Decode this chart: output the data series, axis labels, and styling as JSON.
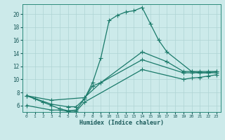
{
  "xlabel": "Humidex (Indice chaleur)",
  "bg_color": "#cceaea",
  "grid_color": "#aed4d4",
  "line_color": "#1a7a6a",
  "xlim": [
    -0.5,
    23.5
  ],
  "ylim": [
    5.0,
    21.5
  ],
  "xticks": [
    0,
    1,
    2,
    3,
    4,
    5,
    6,
    7,
    8,
    9,
    10,
    11,
    12,
    13,
    14,
    15,
    16,
    17,
    18,
    19,
    20,
    21,
    22,
    23
  ],
  "yticks": [
    6,
    8,
    10,
    12,
    14,
    16,
    18,
    20
  ],
  "main_x": [
    0,
    1,
    2,
    3,
    4,
    5,
    6,
    7,
    8,
    9,
    10,
    11,
    12,
    13,
    14,
    15,
    16,
    17,
    20,
    21,
    22,
    23
  ],
  "main_y": [
    7.5,
    7.0,
    6.5,
    6.0,
    5.5,
    5.2,
    5.3,
    7.0,
    9.5,
    13.3,
    19.0,
    19.8,
    20.3,
    20.5,
    21.0,
    18.5,
    16.0,
    14.2,
    11.2,
    11.0,
    11.0,
    11.2
  ],
  "line1_x": [
    0,
    3,
    7,
    9,
    14,
    17,
    19,
    20,
    21,
    22,
    23
  ],
  "line1_y": [
    7.5,
    6.8,
    7.2,
    9.5,
    14.2,
    12.7,
    11.2,
    11.2,
    11.2,
    11.2,
    11.2
  ],
  "line2_x": [
    0,
    3,
    5,
    6,
    7,
    8,
    9,
    14,
    19,
    20,
    21,
    22,
    23
  ],
  "line2_y": [
    7.5,
    6.2,
    5.8,
    5.8,
    7.0,
    9.0,
    9.5,
    13.0,
    11.0,
    11.0,
    11.0,
    11.0,
    11.0
  ],
  "line3_x": [
    0,
    3,
    4,
    5,
    6,
    7,
    14,
    19,
    20,
    21,
    22,
    23
  ],
  "line3_y": [
    6.0,
    5.3,
    5.3,
    5.1,
    5.1,
    6.5,
    11.5,
    10.0,
    10.2,
    10.3,
    10.5,
    10.7
  ]
}
